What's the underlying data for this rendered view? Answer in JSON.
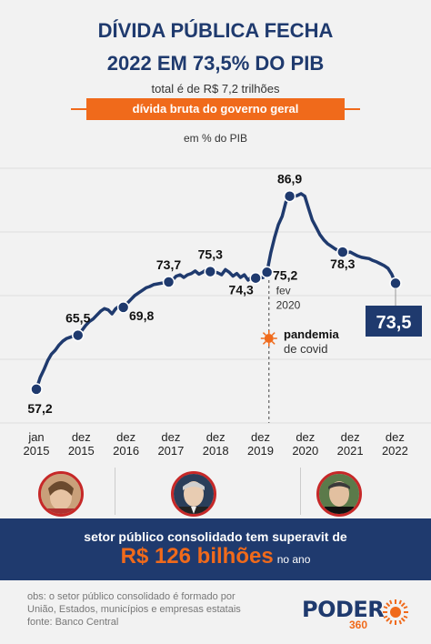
{
  "header": {
    "title_line1": "DÍVIDA PÚBLICA FECHA",
    "title_line2": "2022 EM 73,5% DO PIB",
    "subtitle": "total é de R$ 7,2 trilhões",
    "banner": "dívida bruta do governo geral",
    "unit": "em % do PIB"
  },
  "chart_data": {
    "type": "line",
    "series": [
      {
        "values": [
          57.2,
          59.0,
          60.2,
          61.6,
          62.6,
          63.2,
          64.0,
          64.6,
          65.0,
          65.2,
          65.4,
          65.5,
          66.2,
          67.0,
          67.6,
          68.0,
          68.6,
          69.2,
          69.6,
          69.4,
          68.8,
          69.6,
          70.0,
          69.8,
          70.4,
          71.0,
          71.6,
          72.0,
          72.4,
          72.8,
          73.0,
          73.3,
          73.4,
          73.5,
          73.6,
          73.7,
          74.0,
          74.6,
          74.8,
          74.4,
          74.8,
          75.0,
          75.4,
          74.9,
          75.2,
          75.6,
          75.3,
          75.3,
          75.1,
          74.8,
          75.6,
          75.2,
          74.6,
          75.0,
          74.4,
          74.8,
          74.0,
          74.5,
          74.3,
          74.3,
          74.4,
          75.2,
          78.2,
          80.5,
          82.5,
          83.8,
          86.0,
          86.9,
          86.8,
          87.0,
          87.3,
          86.9,
          85.0,
          83.2,
          82.1,
          81.0,
          80.2,
          79.6,
          79.2,
          78.8,
          78.5,
          78.3,
          78.2,
          78.3,
          78.0,
          77.7,
          77.5,
          77.4,
          77.3,
          77.0,
          76.8,
          76.5,
          76.2,
          75.8,
          74.9,
          73.5
        ]
      }
    ],
    "x_tick_labels": [
      [
        "jan",
        "2015"
      ],
      [
        "dez",
        "2015"
      ],
      [
        "dez",
        "2016"
      ],
      [
        "dez",
        "2017"
      ],
      [
        "dez",
        "2018"
      ],
      [
        "dez",
        "2019"
      ],
      [
        "dez",
        "2020"
      ],
      [
        "dez",
        "2021"
      ],
      [
        "dez",
        "2022"
      ]
    ],
    "x_tick_months": [
      0,
      11,
      23,
      35,
      47,
      59,
      71,
      83,
      95
    ],
    "ylim": [
      52,
      94
    ],
    "gridlines": [
      55,
      65,
      75,
      85,
      95
    ],
    "markers": [
      {
        "month": 0,
        "label": "57,2"
      },
      {
        "month": 11,
        "label": "65,5"
      },
      {
        "month": 23,
        "label": "69,8"
      },
      {
        "month": 35,
        "label": "73,7"
      },
      {
        "month": 46,
        "label": "75,3"
      },
      {
        "month": 58,
        "label": "74,3"
      },
      {
        "month": 61,
        "label": "75,2",
        "note1": "fev",
        "note2": "2020"
      },
      {
        "month": 67,
        "label": "86,9"
      },
      {
        "month": 81,
        "label": "78,3"
      },
      {
        "month": 95,
        "label": "73,5",
        "boxed": true
      }
    ],
    "annotation": {
      "month": 62,
      "title": "pandemia",
      "text": "de covid"
    },
    "colors": {
      "line": "#1f3a6e",
      "accent": "#f06a1b",
      "grid": "#dddddd"
    }
  },
  "presidents": [
    {
      "name_icon": "dilma-photo",
      "position_month": 11
    },
    {
      "name_icon": "temer-photo",
      "position_month": 47
    },
    {
      "name_icon": "bolsonaro-photo",
      "position_month": 83
    }
  ],
  "footer": {
    "band_line1": "setor público consolidado tem superavit de",
    "band_value": "R$ 126 bilhões",
    "band_suffix": "no ano",
    "note1": "obs: o setor público consolidado é formado por",
    "note2": "União, Estados, municípios e empresas estatais",
    "note3": "fonte: Banco Central",
    "logo_text": "PODER",
    "logo_num": "360"
  }
}
